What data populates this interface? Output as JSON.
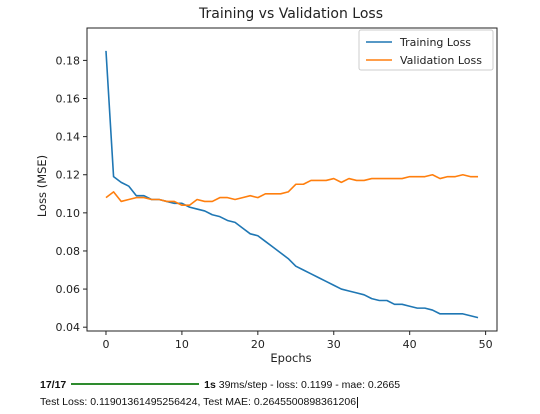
{
  "chart_data": {
    "type": "line",
    "title": "Training vs Validation Loss",
    "xlabel": "Epochs",
    "ylabel": "Loss (MSE)",
    "xlim": [
      -2.5,
      51.5
    ],
    "ylim": [
      0.038,
      0.197
    ],
    "xticks": [
      0,
      10,
      20,
      30,
      40,
      50
    ],
    "yticks": [
      0.04,
      0.06,
      0.08,
      0.1,
      0.12,
      0.14,
      0.16,
      0.18
    ],
    "ytick_labels": [
      "0.04",
      "0.06",
      "0.08",
      "0.10",
      "0.12",
      "0.14",
      "0.16",
      "0.18"
    ],
    "legend_position": "top-right",
    "grid": false,
    "x": [
      0,
      1,
      2,
      3,
      4,
      5,
      6,
      7,
      8,
      9,
      10,
      11,
      12,
      13,
      14,
      15,
      16,
      17,
      18,
      19,
      20,
      21,
      22,
      23,
      24,
      25,
      26,
      27,
      28,
      29,
      30,
      31,
      32,
      33,
      34,
      35,
      36,
      37,
      38,
      39,
      40,
      41,
      42,
      43,
      44,
      45,
      46,
      47,
      48,
      49
    ],
    "series": [
      {
        "name": "Training Loss",
        "color": "#1f77b4",
        "values": [
          0.185,
          0.119,
          0.116,
          0.114,
          0.109,
          0.109,
          0.107,
          0.107,
          0.106,
          0.105,
          0.105,
          0.103,
          0.102,
          0.101,
          0.099,
          0.098,
          0.096,
          0.095,
          0.092,
          0.089,
          0.088,
          0.085,
          0.082,
          0.079,
          0.076,
          0.072,
          0.07,
          0.068,
          0.066,
          0.064,
          0.062,
          0.06,
          0.059,
          0.058,
          0.057,
          0.055,
          0.054,
          0.054,
          0.052,
          0.052,
          0.051,
          0.05,
          0.05,
          0.049,
          0.047,
          0.047,
          0.047,
          0.047,
          0.046,
          0.045
        ]
      },
      {
        "name": "Validation Loss",
        "color": "#ff7f0e",
        "values": [
          0.108,
          0.111,
          0.106,
          0.107,
          0.108,
          0.108,
          0.107,
          0.107,
          0.106,
          0.106,
          0.104,
          0.104,
          0.107,
          0.106,
          0.106,
          0.108,
          0.108,
          0.107,
          0.108,
          0.109,
          0.108,
          0.11,
          0.11,
          0.11,
          0.111,
          0.115,
          0.115,
          0.117,
          0.117,
          0.117,
          0.118,
          0.116,
          0.118,
          0.117,
          0.117,
          0.118,
          0.118,
          0.118,
          0.118,
          0.118,
          0.119,
          0.119,
          0.119,
          0.12,
          0.118,
          0.119,
          0.119,
          0.12,
          0.119,
          0.119
        ]
      }
    ]
  },
  "console": {
    "step": "17/17",
    "time": "1s",
    "rest": " 39ms/step - loss: 0.1199 - mae: 0.2665",
    "progress_fraction": 1.0,
    "result_line": "Test Loss: 0.11901361495256424, Test MAE: 0.2645500898361206"
  }
}
